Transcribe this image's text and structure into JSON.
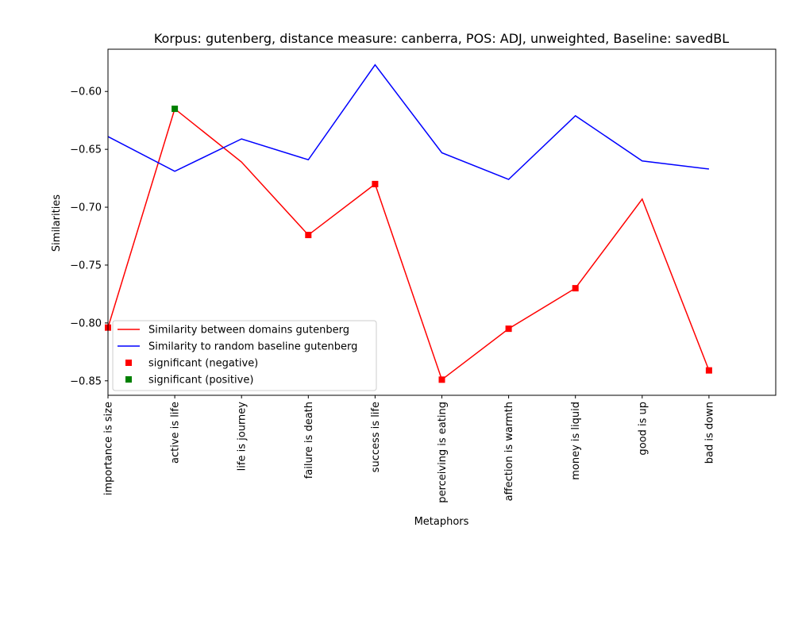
{
  "chart_data": {
    "type": "line",
    "title": "Korpus: gutenberg, distance measure: canberra, POS: ADJ, unweighted, Baseline: savedBL",
    "xlabel": "Metaphors",
    "ylabel": "Similarities",
    "categories": [
      "importance is size",
      "active is life",
      "life is journey",
      "failure is death",
      "success is life",
      "perceiving is eating",
      "affection is warmth",
      "money is liquid",
      "good is up",
      "bad is down"
    ],
    "series": [
      {
        "name": "Similarity between domains gutenberg",
        "color": "#ff0000",
        "values": [
          -0.804,
          -0.615,
          -0.661,
          -0.724,
          -0.68,
          -0.849,
          -0.805,
          -0.77,
          -0.693,
          -0.841
        ]
      },
      {
        "name": "Similarity to random baseline gutenberg",
        "color": "#0000ff",
        "values": [
          -0.639,
          -0.669,
          -0.641,
          -0.659,
          -0.577,
          -0.653,
          -0.676,
          -0.621,
          -0.66,
          -0.667
        ]
      }
    ],
    "markers": [
      {
        "name": "significant (negative)",
        "color": "#ff0000",
        "indices": [
          0,
          3,
          4,
          5,
          6,
          7,
          9
        ]
      },
      {
        "name": "significant (positive)",
        "color": "#008000",
        "indices": [
          1
        ]
      }
    ],
    "yticks": [
      -0.6,
      -0.65,
      -0.7,
      -0.75,
      -0.8,
      -0.85
    ],
    "ytick_labels": [
      "−0.60",
      "−0.65",
      "−0.70",
      "−0.75",
      "−0.80",
      "−0.85"
    ],
    "ylim": [
      -0.8625,
      -0.5635
    ],
    "xlim": [
      0,
      10
    ],
    "grid": false,
    "legend_position": "lower-left"
  }
}
